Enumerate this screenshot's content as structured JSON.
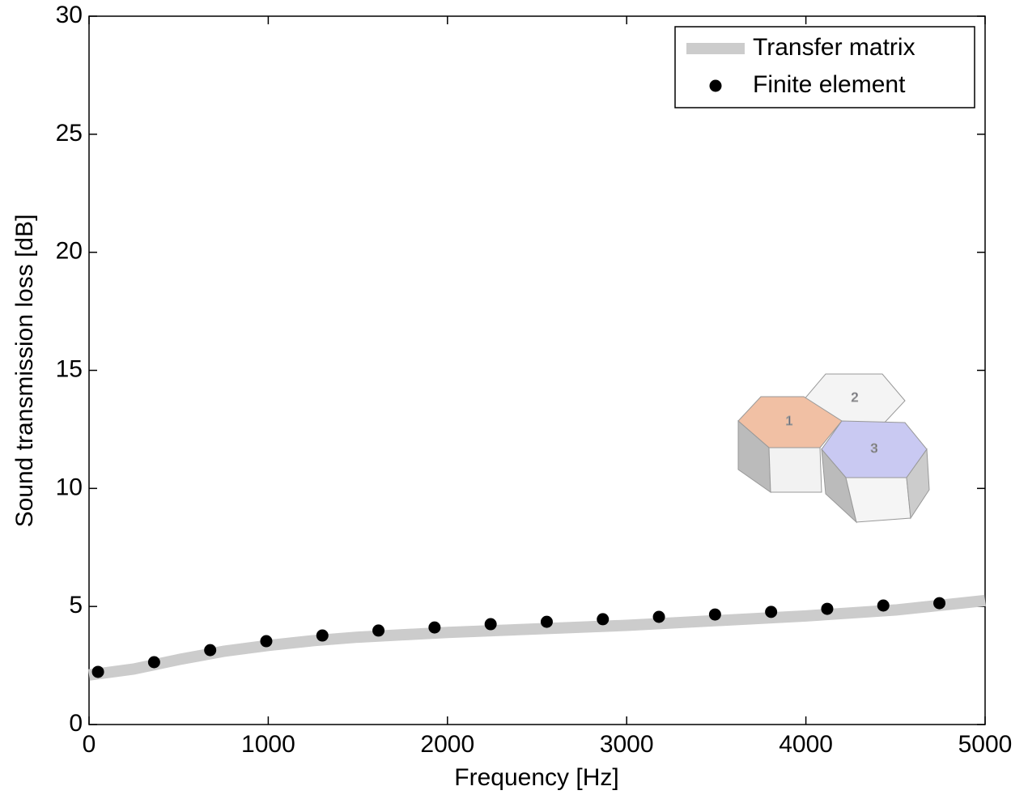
{
  "chart_data": {
    "type": "line",
    "xlabel": "Frequency [Hz]",
    "ylabel": "Sound transmission loss [dB]",
    "xlim": [
      0,
      5000
    ],
    "xticks": [
      0,
      1000,
      2000,
      3000,
      4000,
      5000
    ],
    "ylim": [
      0,
      30
    ],
    "yticks": [
      0,
      5,
      10,
      15,
      20,
      25,
      30
    ],
    "legend": "top-right",
    "annotations": [
      "1",
      "2",
      "3"
    ],
    "series": [
      {
        "name": "Transfer matrix",
        "color": "#cccccc",
        "style": "line",
        "x": [
          0,
          250,
          500,
          750,
          1000,
          1250,
          1500,
          1750,
          2000,
          2500,
          3000,
          3500,
          4000,
          4500,
          5000
        ],
        "values": [
          2.1,
          2.35,
          2.75,
          3.1,
          3.35,
          3.55,
          3.7,
          3.8,
          3.9,
          4.05,
          4.2,
          4.4,
          4.6,
          4.85,
          5.25
        ]
      },
      {
        "name": "Finite element",
        "color": "#000000",
        "style": "markers",
        "x": [
          50,
          363,
          676,
          989,
          1302,
          1615,
          1928,
          2241,
          2554,
          2867,
          3180,
          3493,
          3806,
          4119,
          4432,
          4745
        ],
        "values": [
          2.23,
          2.64,
          3.15,
          3.53,
          3.77,
          3.98,
          4.11,
          4.25,
          4.35,
          4.46,
          4.56,
          4.66,
          4.77,
          4.9,
          5.04,
          5.14
        ]
      }
    ]
  }
}
